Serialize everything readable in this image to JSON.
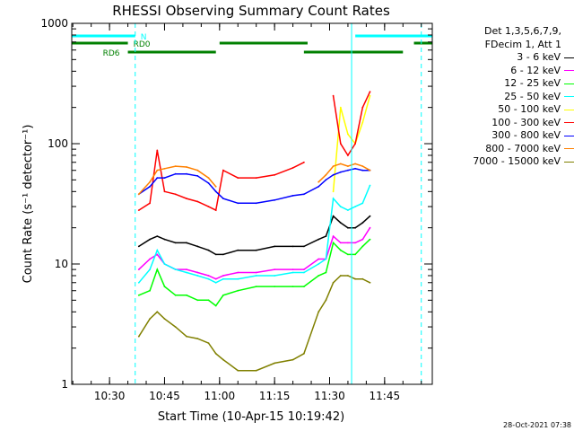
{
  "chart_data": {
    "type": "line",
    "title": "RHESSI Observing Summary Count Rates",
    "xlabel": "Start Time (10-Apr-15 10:19:42)",
    "ylabel": "Count Rate (s⁻¹ detector⁻¹)",
    "y_scale": "log",
    "ylim": [
      1,
      1000
    ],
    "xlim": [
      "10:19:42",
      "11:58:00"
    ],
    "x_ticks": [
      "10:30",
      "10:45",
      "11:00",
      "11:15",
      "11:30",
      "11:45"
    ],
    "y_ticks": [
      "1",
      "10",
      "100",
      "1000"
    ],
    "legend_header": [
      "Det 1,3,5,6,7,9,",
      "FDecim 1, Att 1"
    ],
    "x": [
      "10:35",
      "10:38",
      "10:41",
      "10:43",
      "10:45",
      "10:48",
      "10:51",
      "10:54",
      "10:57",
      "10:59",
      "11:01",
      "11:05",
      "11:10",
      "11:15",
      "11:20",
      "11:23",
      "11:27",
      "11:29",
      "11:31",
      "11:33",
      "11:35",
      "11:37",
      "11:39",
      "11:41"
    ],
    "series": [
      {
        "name": "3 - 6 keV",
        "color": "#000000",
        "values": [
          null,
          14,
          16,
          17,
          16,
          15,
          15,
          14,
          13,
          12,
          12,
          13,
          13,
          14,
          14,
          14,
          16,
          17,
          25,
          22,
          20,
          20,
          22,
          25
        ]
      },
      {
        "name": "6 - 12 keV",
        "color": "#ff00ff",
        "values": [
          null,
          9,
          11,
          12,
          10,
          9,
          9,
          8.5,
          8,
          7.5,
          8,
          8.5,
          8.5,
          9,
          9,
          9,
          11,
          11,
          17,
          15,
          15,
          15,
          16,
          20
        ]
      },
      {
        "name": "12 - 25 keV",
        "color": "#00ff00",
        "values": [
          null,
          5.5,
          6,
          9,
          6.5,
          5.5,
          5.5,
          5,
          5,
          4.5,
          5.5,
          6,
          6.5,
          6.5,
          6.5,
          6.5,
          8,
          8.5,
          15,
          13,
          12,
          12,
          14,
          16
        ]
      },
      {
        "name": "25 - 50 keV",
        "color": "#00ffff",
        "values": [
          null,
          7,
          9,
          13,
          10,
          9,
          8.5,
          8,
          7.5,
          7,
          7.5,
          7.5,
          8,
          8,
          8.5,
          8.5,
          10,
          11,
          35,
          30,
          28,
          30,
          32,
          45
        ]
      },
      {
        "name": "50 - 100 keV",
        "color": "#ffff00",
        "values": [
          null,
          null,
          null,
          null,
          null,
          null,
          null,
          null,
          null,
          null,
          null,
          null,
          null,
          null,
          null,
          null,
          null,
          null,
          40,
          200,
          120,
          100,
          150,
          250
        ]
      },
      {
        "name": "100 - 300 keV",
        "color": "#ff0000",
        "values": [
          null,
          28,
          32,
          88,
          40,
          38,
          35,
          33,
          30,
          28,
          60,
          52,
          52,
          55,
          63,
          70,
          null,
          null,
          250,
          100,
          80,
          100,
          200,
          270
        ]
      },
      {
        "name": "300 - 800 keV",
        "color": "#0000ff",
        "values": [
          null,
          38,
          44,
          52,
          52,
          56,
          56,
          54,
          47,
          40,
          35,
          32,
          32,
          34,
          37,
          38,
          44,
          50,
          55,
          58,
          60,
          62,
          60,
          60
        ]
      },
      {
        "name": "800 - 7000 keV",
        "color": "#ff8000",
        "values": [
          null,
          38,
          48,
          60,
          62,
          65,
          64,
          60,
          52,
          44,
          null,
          null,
          null,
          null,
          null,
          null,
          48,
          55,
          65,
          68,
          65,
          68,
          65,
          60
        ]
      },
      {
        "name": "7000 - 15000 keV",
        "color": "#808000",
        "values": [
          null,
          2.5,
          3.5,
          4,
          3.5,
          3,
          2.5,
          2.4,
          2.2,
          1.8,
          1.6,
          1.3,
          1.3,
          1.5,
          1.6,
          1.8,
          4,
          5,
          7,
          8,
          8,
          7.5,
          7.5,
          7
        ]
      }
    ],
    "bars": [
      {
        "label": "N",
        "color": "#00ffff",
        "segments": [
          [
            "10:19:42",
            "10:37"
          ],
          [
            "11:37",
            "11:58"
          ]
        ]
      },
      {
        "label": "RD0",
        "color": "#008000",
        "segments": [
          [
            "10:19:42",
            "10:35"
          ],
          [
            "11:00",
            "11:24"
          ],
          [
            "11:53",
            "11:58"
          ]
        ]
      },
      {
        "label": "RD6",
        "color": "#008000",
        "segments": [
          [
            "10:35",
            "10:59"
          ],
          [
            "11:23",
            "11:50"
          ]
        ]
      }
    ],
    "vlines": [
      {
        "time": "10:19:42",
        "color": "#00ffff",
        "style": "solid"
      },
      {
        "time": "10:37",
        "color": "#00ffff",
        "style": "dashed"
      },
      {
        "time": "11:36",
        "color": "#00ffff",
        "style": "solid"
      },
      {
        "time": "11:55",
        "color": "#00ffff",
        "style": "dashed"
      }
    ],
    "grid": false,
    "legend_placement": "right"
  },
  "timestamp": "28-Oct-2021 07:38"
}
